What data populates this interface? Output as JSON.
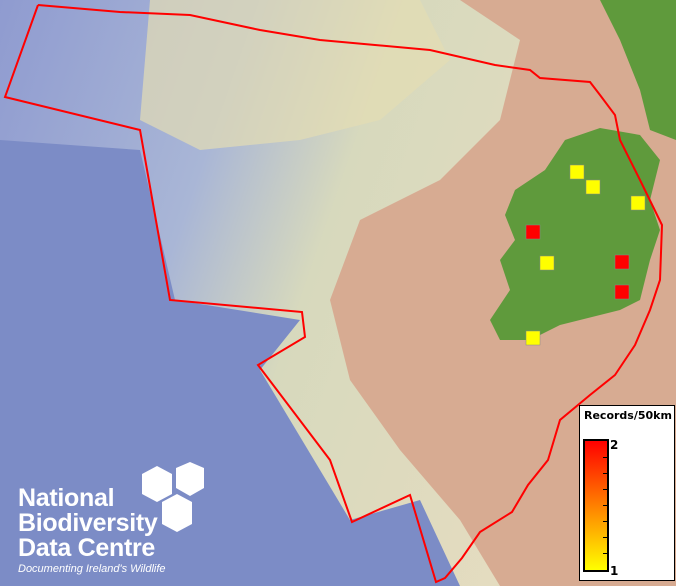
{
  "map": {
    "colors": {
      "deep_ocean": "#7f8fc8",
      "shelf": "#d8d8b8",
      "seabed_land": "#d4a890",
      "land": "#5f9a3c",
      "boundary": "#ff0000",
      "low": "#ffff00",
      "high": "#ff0000"
    },
    "grid_square_values": [
      1,
      1,
      1,
      1,
      1,
      2,
      2,
      2
    ]
  },
  "legend": {
    "title": "Records/50km",
    "max_label": "2",
    "min_label": "1"
  },
  "logo": {
    "line1": "National",
    "line2": "Biodiversity",
    "line3": "Data Centre",
    "tagline": "Documenting Ireland's Wildlife"
  }
}
